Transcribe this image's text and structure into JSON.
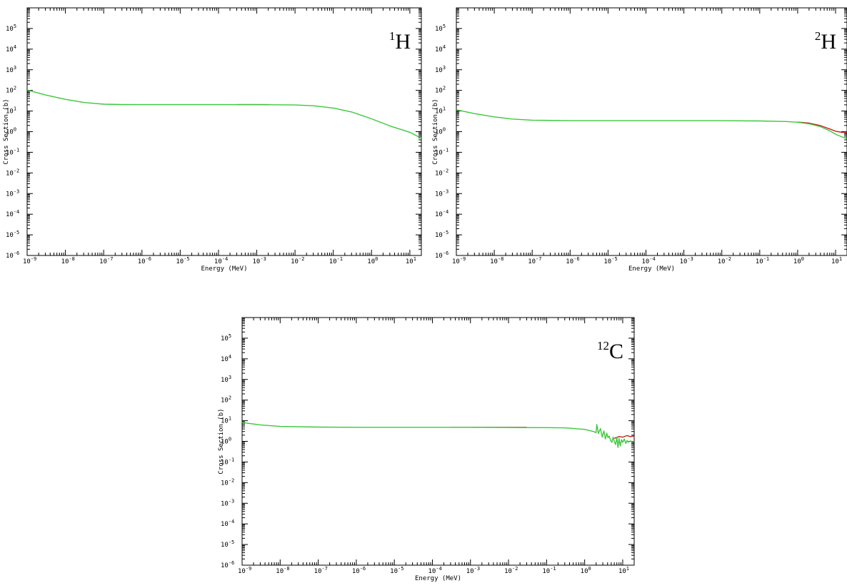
{
  "chart_data": [
    {
      "type": "line",
      "nuclide": {
        "mass_number": "1",
        "symbol": "H"
      },
      "xlabel": "Energy (MeV)",
      "ylabel": "Cross Section (b)",
      "xscale": "log",
      "yscale": "log",
      "xlim": [
        1e-09,
        20
      ],
      "ylim": [
        1e-06,
        1000000.0
      ],
      "x_ticks": [
        "-9",
        "-8",
        "-7",
        "-6",
        "-5",
        "-4",
        "-3",
        "-2",
        "-1",
        "0",
        "1"
      ],
      "y_ticks": [
        "-6",
        "-5",
        "-4",
        "-3",
        "-2",
        "-1",
        "0",
        "1",
        "2",
        "3",
        "4",
        "5"
      ],
      "series": [
        {
          "color": "#c81e1e",
          "x": [
            0.0003,
            0.002
          ],
          "y": [
            20.4,
            20.4
          ]
        },
        {
          "color": "#3cc83c",
          "x": [
            1e-09,
            3e-09,
            1e-08,
            3e-08,
            1e-07,
            3e-07,
            1e-06,
            1e-05,
            0.0001,
            0.001,
            0.01,
            0.03,
            0.1,
            0.3,
            1,
            3,
            10,
            20
          ],
          "y": [
            105,
            60,
            37,
            26,
            21.5,
            20.6,
            20.5,
            20.5,
            20.45,
            20.4,
            19.6,
            18,
            14,
            9,
            4.2,
            1.9,
            0.93,
            0.48
          ]
        }
      ]
    },
    {
      "type": "line",
      "nuclide": {
        "mass_number": "2",
        "symbol": "H"
      },
      "xlabel": "Energy (MeV)",
      "ylabel": "Cross Section (b)",
      "xscale": "log",
      "yscale": "log",
      "xlim": [
        1e-09,
        20
      ],
      "ylim": [
        1e-06,
        1000000.0
      ],
      "x_ticks": [
        "-9",
        "-8",
        "-7",
        "-6",
        "-5",
        "-4",
        "-3",
        "-2",
        "-1",
        "0",
        "1"
      ],
      "y_ticks": [
        "-6",
        "-5",
        "-4",
        "-3",
        "-2",
        "-1",
        "0",
        "1",
        "2",
        "3",
        "4",
        "5"
      ],
      "series": [
        {
          "color": "#c81e1e",
          "x": [
            1,
            2,
            4,
            7,
            10,
            15,
            20
          ],
          "y": [
            2.9,
            2.6,
            1.95,
            1.35,
            1.05,
            0.92,
            0.95
          ]
        },
        {
          "color": "#3cc83c",
          "x": [
            1e-09,
            3e-09,
            1e-08,
            3e-08,
            1e-07,
            1e-06,
            1e-05,
            0.0001,
            0.001,
            0.01,
            0.1,
            0.5,
            1,
            2,
            4,
            7,
            10,
            15,
            20
          ],
          "y": [
            11.5,
            7.5,
            5.2,
            4.1,
            3.6,
            3.4,
            3.4,
            3.4,
            3.4,
            3.4,
            3.3,
            3.1,
            2.85,
            2.4,
            1.75,
            1.1,
            0.75,
            0.55,
            0.45
          ]
        }
      ]
    },
    {
      "type": "line",
      "nuclide": {
        "mass_number": "12",
        "symbol": "C"
      },
      "xlabel": "Energy (MeV)",
      "ylabel": "Cross Section (b)",
      "xscale": "log",
      "yscale": "log",
      "xlim": [
        1e-09,
        20
      ],
      "ylim": [
        1e-06,
        1000000.0
      ],
      "x_ticks": [
        "-9",
        "-8",
        "-7",
        "-6",
        "-5",
        "-4",
        "-3",
        "-2",
        "-1",
        "0",
        "1"
      ],
      "y_ticks": [
        "-6",
        "-5",
        "-4",
        "-3",
        "-2",
        "-1",
        "0",
        "1",
        "2",
        "3",
        "4",
        "5"
      ],
      "series": [
        {
          "color": "#c81e1e",
          "x": [
            0.0003,
            0.03
          ],
          "y": [
            4.8,
            4.8
          ]
        },
        {
          "color": "#c81e1e",
          "x": [
            6,
            8,
            10,
            13,
            16,
            20
          ],
          "y": [
            1.4,
            1.7,
            1.6,
            1.9,
            1.7,
            1.8
          ]
        },
        {
          "color": "#3cc83c",
          "x": [
            1e-09,
            3e-09,
            1e-08,
            1e-07,
            1e-06,
            1e-05,
            0.0001,
            0.001,
            0.01,
            0.1,
            0.3,
            1,
            1.8,
            2.0,
            2.08,
            2.3,
            2.6,
            2.9,
            3.2,
            3.5,
            3.8,
            4.1,
            4.4,
            4.8,
            5.2,
            5.6,
            6.0,
            6.5,
            7.0,
            7.5,
            8.0,
            8.6,
            9.3,
            10,
            11,
            12,
            13,
            14,
            15,
            16,
            18,
            20
          ],
          "y": [
            8.2,
            6.3,
            5.3,
            4.9,
            4.8,
            4.8,
            4.8,
            4.8,
            4.7,
            4.6,
            4.5,
            3.8,
            2.9,
            2.6,
            6.6,
            2.4,
            4.2,
            1.6,
            3.2,
            1.3,
            2.5,
            1.5,
            1.8,
            1.1,
            0.9,
            1.6,
            1.0,
            0.7,
            1.6,
            0.5,
            1.4,
            0.6,
            1.2,
            0.9,
            1.3,
            0.8,
            1.1,
            0.9,
            1.0,
            1.05,
            0.95,
            1.0
          ]
        }
      ]
    }
  ]
}
